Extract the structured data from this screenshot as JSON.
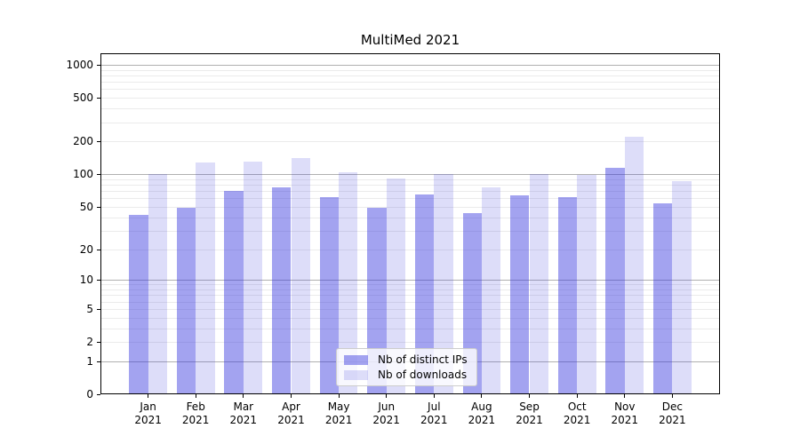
{
  "chart_data": {
    "type": "bar",
    "title": "MultiMed 2021",
    "categories": [
      "Jan 2021",
      "Feb 2021",
      "Mar 2021",
      "Apr 2021",
      "May 2021",
      "Jun 2021",
      "Jul 2021",
      "Aug 2021",
      "Sep 2021",
      "Oct 2021",
      "Nov 2021",
      "Dec 2021"
    ],
    "x_months": [
      "Jan",
      "Feb",
      "Mar",
      "Apr",
      "May",
      "Jun",
      "Jul",
      "Aug",
      "Sep",
      "Oct",
      "Nov",
      "Dec"
    ],
    "x_year": "2021",
    "series": [
      {
        "name": "Nb of distinct IPs",
        "color": "rgba(51,51,221,0.45)",
        "values": [
          42,
          49,
          70,
          76,
          61,
          49,
          65,
          44,
          64,
          61,
          115,
          54
        ]
      },
      {
        "name": "Nb of downloads",
        "color": "rgba(51,51,221,0.17)",
        "values": [
          100,
          129,
          130,
          140,
          105,
          92,
          101,
          76,
          100,
          98,
          220,
          86
        ]
      }
    ],
    "ylabel": "",
    "xlabel": "",
    "yscale": "log10(1+y)",
    "ylim": [
      0,
      1275
    ],
    "yticks": [
      1000,
      500,
      200,
      100,
      50,
      20,
      10,
      5,
      2,
      1,
      0
    ],
    "major_gridlines": [
      1,
      10,
      100,
      1000
    ],
    "legend": {
      "position": "lower center"
    },
    "grid": true,
    "colors": {
      "major_grid": "#b0b0b0",
      "minor_grid": "#ebebeb",
      "spine": "#000000",
      "text": "#000000",
      "background": "#ffffff"
    }
  }
}
